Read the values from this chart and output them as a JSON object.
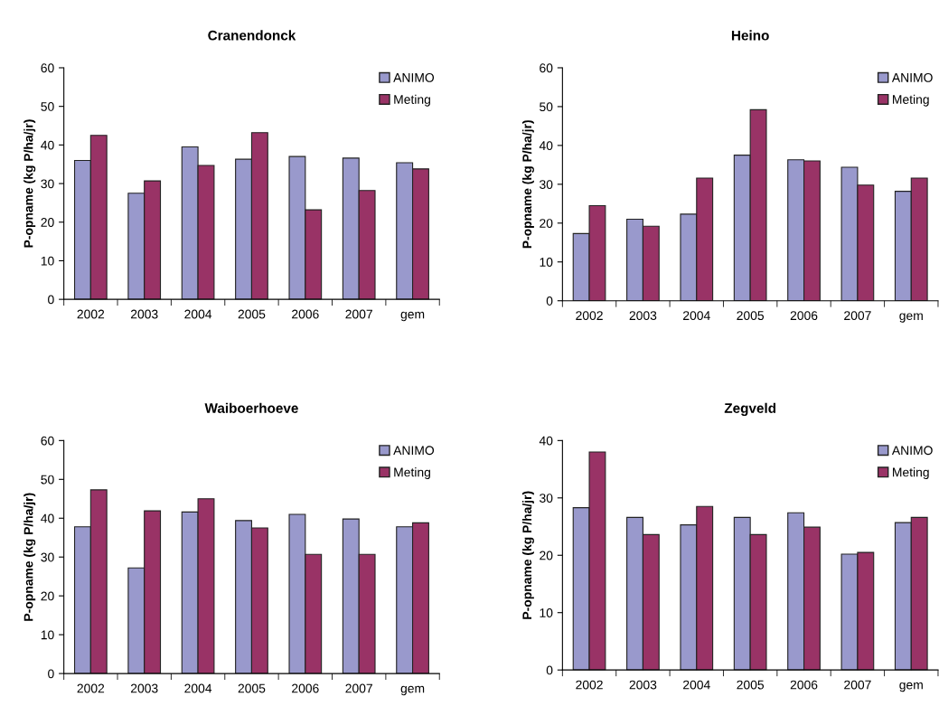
{
  "chart_data": [
    {
      "type": "bar",
      "title": "Cranendonck",
      "ylabel": "P-opname (kg P/ha/jr)",
      "categories": [
        "2002",
        "2003",
        "2004",
        "2005",
        "2006",
        "2007",
        "gem"
      ],
      "ylim": [
        0,
        60
      ],
      "yticks": [
        0,
        10,
        20,
        30,
        40,
        50,
        60
      ],
      "legend": "top right",
      "grid": false,
      "series": [
        {
          "name": "ANIMO",
          "color": "#9999cc",
          "values": [
            36,
            27.5,
            39.5,
            36.3,
            37,
            36.6,
            35.4
          ]
        },
        {
          "name": "Meting",
          "color": "#993366",
          "values": [
            42.5,
            30.7,
            34.7,
            43.2,
            23.2,
            28.2,
            33.8
          ]
        }
      ]
    },
    {
      "type": "bar",
      "title": "Heino",
      "ylabel": "P-opname (kg P/ha/jr)",
      "categories": [
        "2002",
        "2003",
        "2004",
        "2005",
        "2006",
        "2007",
        "gem"
      ],
      "ylim": [
        0,
        60
      ],
      "yticks": [
        0,
        10,
        20,
        30,
        40,
        50,
        60
      ],
      "legend": "top right",
      "grid": false,
      "series": [
        {
          "name": "ANIMO",
          "color": "#9999cc",
          "values": [
            17.3,
            21,
            22.3,
            37.5,
            36.3,
            34.4,
            28.2
          ]
        },
        {
          "name": "Meting",
          "color": "#993366",
          "values": [
            24.5,
            19.2,
            31.6,
            49.2,
            36,
            29.8,
            31.6
          ]
        }
      ]
    },
    {
      "type": "bar",
      "title": "Waiboerhoeve",
      "ylabel": "P-opname (kg P/ha/jr)",
      "categories": [
        "2002",
        "2003",
        "2004",
        "2005",
        "2006",
        "2007",
        "gem"
      ],
      "ylim": [
        0,
        60
      ],
      "yticks": [
        0,
        10,
        20,
        30,
        40,
        50,
        60
      ],
      "legend": "top right",
      "grid": false,
      "series": [
        {
          "name": "ANIMO",
          "color": "#9999cc",
          "values": [
            37.8,
            27.2,
            41.6,
            39.4,
            41,
            39.8,
            37.8
          ]
        },
        {
          "name": "Meting",
          "color": "#993366",
          "values": [
            47.3,
            41.9,
            45,
            37.5,
            30.7,
            30.7,
            38.8
          ]
        }
      ]
    },
    {
      "type": "bar",
      "title": "Zegveld",
      "ylabel": "P-opname (kg P/ha/jr)",
      "categories": [
        "2002",
        "2003",
        "2004",
        "2005",
        "2006",
        "2007",
        "gem"
      ],
      "ylim": [
        0,
        40
      ],
      "yticks": [
        0,
        10,
        20,
        30,
        40
      ],
      "legend": "top right",
      "grid": false,
      "series": [
        {
          "name": "ANIMO",
          "color": "#9999cc",
          "values": [
            28.3,
            26.6,
            25.3,
            26.6,
            27.4,
            20.2,
            25.7
          ]
        },
        {
          "name": "Meting",
          "color": "#993366",
          "values": [
            38,
            23.6,
            28.5,
            23.6,
            24.9,
            20.5,
            26.6
          ]
        }
      ]
    }
  ]
}
